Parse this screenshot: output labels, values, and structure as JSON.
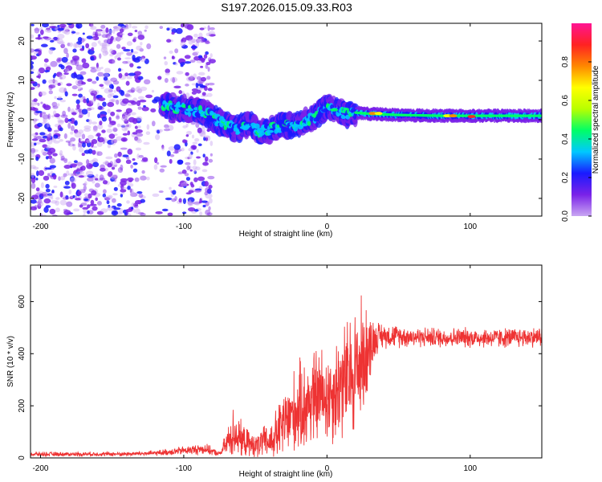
{
  "title": "S197.2026.015.09.33.R03",
  "colors": {
    "snr_line": "#ee3333",
    "colorbar_stops": [
      "#c9a6f2",
      "#7a22e8",
      "#1a1aff",
      "#00c8ff",
      "#00ff66",
      "#b8ff00",
      "#ffff00",
      "#ff8800",
      "#ff2222",
      "#ff1493"
    ]
  },
  "chart_data": [
    {
      "type": "heatmap",
      "name": "spectrogram",
      "xlabel": "Height of straight line (km)",
      "ylabel": "Frequency (Hz)",
      "xlim": [
        -207,
        150
      ],
      "ylim": [
        -24.5,
        24.5
      ],
      "x_ticks": [
        -200,
        -100,
        0,
        100
      ],
      "y_ticks": [
        -20,
        -10,
        0,
        10,
        20
      ],
      "colorbar": {
        "label": "Normalized spectral amplitude",
        "range": [
          0,
          1
        ],
        "ticks": [
          "0.0",
          "0.2",
          "0.4",
          "0.6",
          "0.8"
        ]
      },
      "center_track": {
        "x": [
          -115,
          -105,
          -95,
          -85,
          -78,
          -70,
          -62,
          -55,
          -48,
          -40,
          -32,
          -25,
          -18,
          -10,
          -4,
          0,
          5,
          12,
          20,
          30,
          50,
          80,
          100,
          120,
          150
        ],
        "freq": [
          4,
          3,
          2.5,
          2,
          0,
          -1.5,
          -2.5,
          -1,
          -3,
          -2.5,
          -1.5,
          -1.5,
          -1,
          0.5,
          2,
          3,
          2.5,
          1.5,
          1.8,
          1.5,
          1.2,
          1.0,
          1.0,
          1.0,
          1.0
        ]
      },
      "noise_region_x": [
        -207,
        -80
      ]
    },
    {
      "type": "line",
      "name": "snr",
      "xlabel": "Height of straight line (km)",
      "ylabel": "SNR (10 * v/v)",
      "xlim": [
        -207,
        150
      ],
      "ylim": [
        0,
        740
      ],
      "x_ticks": [
        -200,
        -100,
        0,
        100
      ],
      "y_ticks": [
        0,
        200,
        400,
        600
      ],
      "envelope": {
        "x": [
          -207,
          -140,
          -120,
          -100,
          -85,
          -75,
          -70,
          -65,
          -60,
          -55,
          -50,
          -45,
          -40,
          -35,
          -30,
          -25,
          -20,
          -15,
          -10,
          -5,
          0,
          5,
          10,
          15,
          20,
          25,
          30,
          35,
          40,
          60,
          80,
          100,
          120,
          150
        ],
        "mean": [
          14,
          15,
          18,
          28,
          35,
          15,
          55,
          100,
          70,
          55,
          45,
          60,
          60,
          90,
          130,
          160,
          190,
          200,
          230,
          240,
          240,
          250,
          290,
          300,
          340,
          380,
          430,
          465,
          470,
          465,
          462,
          462,
          460,
          465
        ],
        "spread": [
          10,
          10,
          12,
          20,
          25,
          10,
          60,
          120,
          80,
          60,
          55,
          70,
          80,
          120,
          160,
          180,
          200,
          210,
          220,
          220,
          220,
          230,
          260,
          280,
          300,
          280,
          150,
          70,
          55,
          45,
          45,
          45,
          45,
          45
        ]
      }
    }
  ]
}
